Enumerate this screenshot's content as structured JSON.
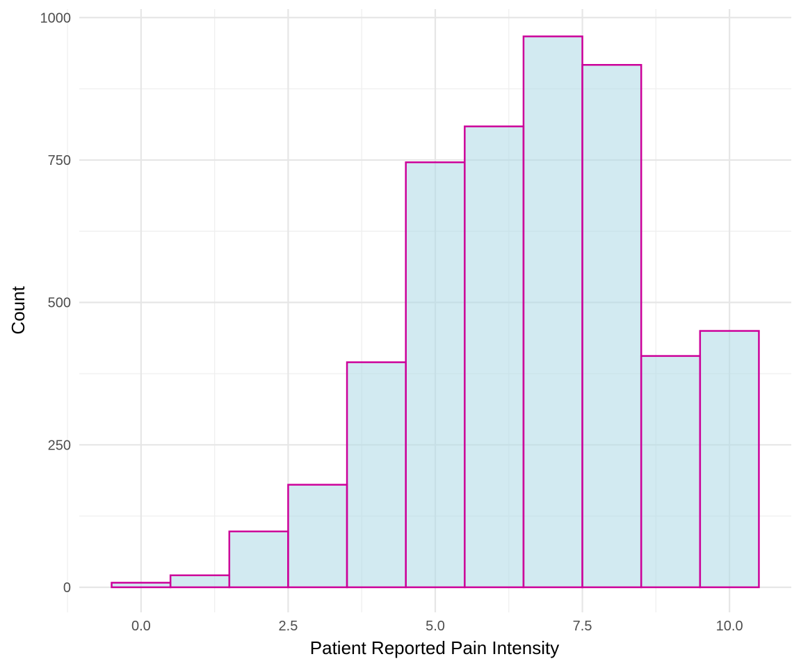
{
  "chart_data": {
    "type": "bar",
    "subtype": "histogram",
    "title": "",
    "xlabel": "Patient Reported Pain Intensity",
    "ylabel": "Count",
    "binwidth": 1,
    "bins": [
      {
        "center": 0,
        "count": 8
      },
      {
        "center": 1,
        "count": 21
      },
      {
        "center": 2,
        "count": 98
      },
      {
        "center": 3,
        "count": 180
      },
      {
        "center": 4,
        "count": 395
      },
      {
        "center": 5,
        "count": 746
      },
      {
        "center": 6,
        "count": 809
      },
      {
        "center": 7,
        "count": 967
      },
      {
        "center": 8,
        "count": 917
      },
      {
        "center": 9,
        "count": 406
      },
      {
        "center": 10,
        "count": 450
      }
    ],
    "xlim": [
      -1.05,
      11.05
    ],
    "ylim": [
      -44,
      1015
    ],
    "x_ticks": [
      0,
      2.5,
      5,
      7.5,
      10
    ],
    "x_tick_labels": [
      "0.0",
      "2.5",
      "5.0",
      "7.5",
      "10.0"
    ],
    "y_ticks": [
      0,
      250,
      500,
      750,
      1000
    ],
    "y_tick_labels": [
      "0",
      "250",
      "500",
      "750",
      "1000"
    ],
    "fill_color": "#add8e6",
    "fill_opacity": 0.55,
    "outline_color": "#cc0099",
    "grid": true,
    "legend": "none"
  }
}
